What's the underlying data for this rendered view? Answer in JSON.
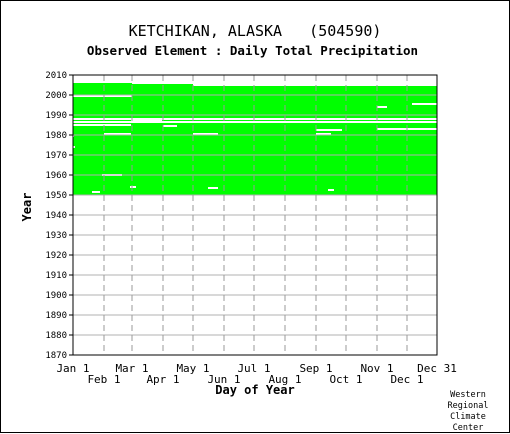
{
  "chart_data": {
    "type": "heatmap",
    "title": "KETCHIKAN, ALASKA   (504590)",
    "subtitle": "Observed Element : Daily Total Precipitation",
    "xlabel": "Day of Year",
    "ylabel": "Year",
    "ylim": [
      1870,
      2012
    ],
    "xlim": [
      1,
      365
    ],
    "y_ticks": [
      2010,
      2000,
      1990,
      1980,
      1970,
      1960,
      1950,
      1940,
      1930,
      1920,
      1910,
      1900,
      1890,
      1880,
      1870
    ],
    "x_ticks_top_row": [
      {
        "label": "Jan 1",
        "day": 1
      },
      {
        "label": "Mar 1",
        "day": 60
      },
      {
        "label": "May 1",
        "day": 121
      },
      {
        "label": "Jul 1",
        "day": 182
      },
      {
        "label": "Sep 1",
        "day": 244
      },
      {
        "label": "Nov 1",
        "day": 305
      },
      {
        "label": "Dec 31",
        "day": 365
      }
    ],
    "x_ticks_bottom_row": [
      {
        "label": "Feb 1",
        "day": 32
      },
      {
        "label": "Apr 1",
        "day": 91
      },
      {
        "label": "Jun 1",
        "day": 152
      },
      {
        "label": "Aug 1",
        "day": 213
      },
      {
        "label": "Oct 1",
        "day": 274
      },
      {
        "label": "Dec 1",
        "day": 335
      }
    ],
    "grid": true,
    "data_color": "#00ff00",
    "coverage_blocks": [
      {
        "year_start": 1949.8,
        "year_end": 1981,
        "day_start": 1,
        "day_end": 365
      },
      {
        "year_start": 1981,
        "year_end": 1987.5,
        "day_start": 1,
        "day_end": 365
      },
      {
        "year_start": 1988.5,
        "year_end": 2006,
        "day_start": 1,
        "day_end": 60
      },
      {
        "year_start": 1988.5,
        "year_end": 2005.5,
        "day_start": 60,
        "day_end": 121
      },
      {
        "year_start": 1988.5,
        "year_end": 2004.5,
        "day_start": 121,
        "day_end": 365
      }
    ],
    "gaps": [
      {
        "year": 1951.5,
        "day_start": 20,
        "day_end": 28
      },
      {
        "year": 1954,
        "day_start": 58,
        "day_end": 64
      },
      {
        "year": 1953.5,
        "day_start": 136,
        "day_end": 146
      },
      {
        "year": 1952.5,
        "day_start": 256,
        "day_end": 262
      },
      {
        "year": 1949.5,
        "day_start": 244,
        "day_end": 290
      },
      {
        "year": 1960,
        "day_start": 30,
        "day_end": 50
      },
      {
        "year": 1974,
        "day_start": 1,
        "day_end": 3
      },
      {
        "year": 1979.5,
        "day_start": 1,
        "day_end": 2
      },
      {
        "year": 1980.5,
        "day_start": 32,
        "day_end": 59
      },
      {
        "year": 1980.5,
        "day_start": 121,
        "day_end": 146
      },
      {
        "year": 1980.5,
        "day_start": 244,
        "day_end": 259
      },
      {
        "year": 1982.5,
        "day_start": 244,
        "day_end": 270
      },
      {
        "year": 1983,
        "day_start": 305,
        "day_end": 365
      },
      {
        "year": 1985,
        "day_start": 1,
        "day_end": 59
      },
      {
        "year": 1986.5,
        "day_start": 1,
        "day_end": 365
      },
      {
        "year": 1988,
        "day_start": 1,
        "day_end": 365
      },
      {
        "year": 1987.3,
        "day_start": 59,
        "day_end": 90
      },
      {
        "year": 1984.5,
        "day_start": 91,
        "day_end": 105
      },
      {
        "year": 1999.5,
        "day_start": 1,
        "day_end": 60
      },
      {
        "year": 1995.5,
        "day_start": 340,
        "day_end": 365
      },
      {
        "year": 1994,
        "day_start": 305,
        "day_end": 315
      }
    ]
  },
  "credit_lines": [
    "Western",
    "Regional",
    "Climate",
    "Center"
  ]
}
